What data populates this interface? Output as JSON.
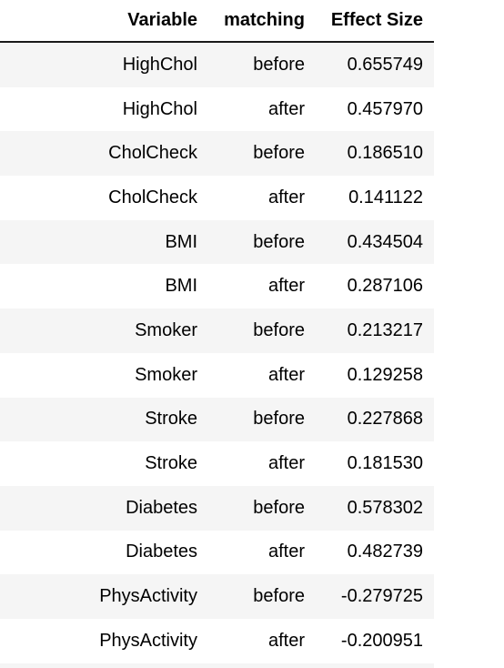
{
  "table": {
    "headers": [
      "Variable",
      "matching",
      "Effect Size"
    ],
    "rows": [
      [
        "HighChol",
        "before",
        "0.655749"
      ],
      [
        "HighChol",
        "after",
        "0.457970"
      ],
      [
        "CholCheck",
        "before",
        "0.186510"
      ],
      [
        "CholCheck",
        "after",
        "0.141122"
      ],
      [
        "BMI",
        "before",
        "0.434504"
      ],
      [
        "BMI",
        "after",
        "0.287106"
      ],
      [
        "Smoker",
        "before",
        "0.213217"
      ],
      [
        "Smoker",
        "after",
        "0.129258"
      ],
      [
        "Stroke",
        "before",
        "0.227868"
      ],
      [
        "Stroke",
        "after",
        "0.181530"
      ],
      [
        "Diabetes",
        "before",
        "0.578302"
      ],
      [
        "Diabetes",
        "after",
        "0.482739"
      ],
      [
        "PhysActivity",
        "before",
        "-0.279725"
      ],
      [
        "PhysActivity",
        "after",
        "-0.200951"
      ]
    ]
  }
}
